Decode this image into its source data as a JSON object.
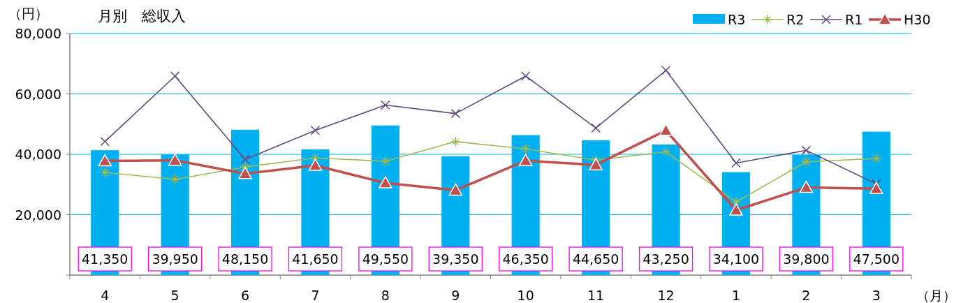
{
  "chart_data": {
    "type": "bar",
    "title": "月別　総収入",
    "ylabel": "（円）",
    "xlabel": "（月）",
    "categories": [
      "4",
      "5",
      "6",
      "7",
      "8",
      "9",
      "10",
      "11",
      "12",
      "1",
      "2",
      "3"
    ],
    "ylim": [
      0,
      80000
    ],
    "yticks": [
      {
        "value": 0,
        "label": null
      },
      {
        "value": 20000,
        "label": "20,000"
      },
      {
        "value": 40000,
        "label": "40,000"
      },
      {
        "value": 60000,
        "label": "60,000"
      },
      {
        "value": 80000,
        "label": "80,000"
      }
    ],
    "grid": "y",
    "legend": "top right",
    "series": [
      {
        "name": "R3",
        "color": "#00b0f0",
        "values": [
          41350,
          39950,
          48150,
          41650,
          49550,
          39350,
          46350,
          44650,
          43250,
          34100,
          39800,
          47500
        ],
        "value_labels": [
          "41,350",
          "39,950",
          "48,150",
          "41,650",
          "49,550",
          "39,350",
          "46,350",
          "44,650",
          "43,250",
          "34,100",
          "39,800",
          "47,500"
        ]
      },
      {
        "name": "R2",
        "type": "line",
        "color": "#9bbb59",
        "marker": "star",
        "values": [
          34000,
          31700,
          35800,
          38800,
          37700,
          44200,
          41800,
          38100,
          40800,
          24200,
          37500,
          38600
        ]
      },
      {
        "name": "R1",
        "type": "line",
        "color": "#604a7b",
        "marker": "cross",
        "values": [
          44200,
          65900,
          38300,
          47900,
          56300,
          53500,
          65900,
          48700,
          67800,
          37100,
          41300,
          30200
        ]
      },
      {
        "name": "H30",
        "type": "line",
        "color": "#c0504d",
        "marker": "triangle",
        "values": [
          37800,
          38000,
          33600,
          36300,
          30500,
          28100,
          37900,
          36500,
          47900,
          21500,
          29000,
          28600
        ]
      }
    ]
  }
}
